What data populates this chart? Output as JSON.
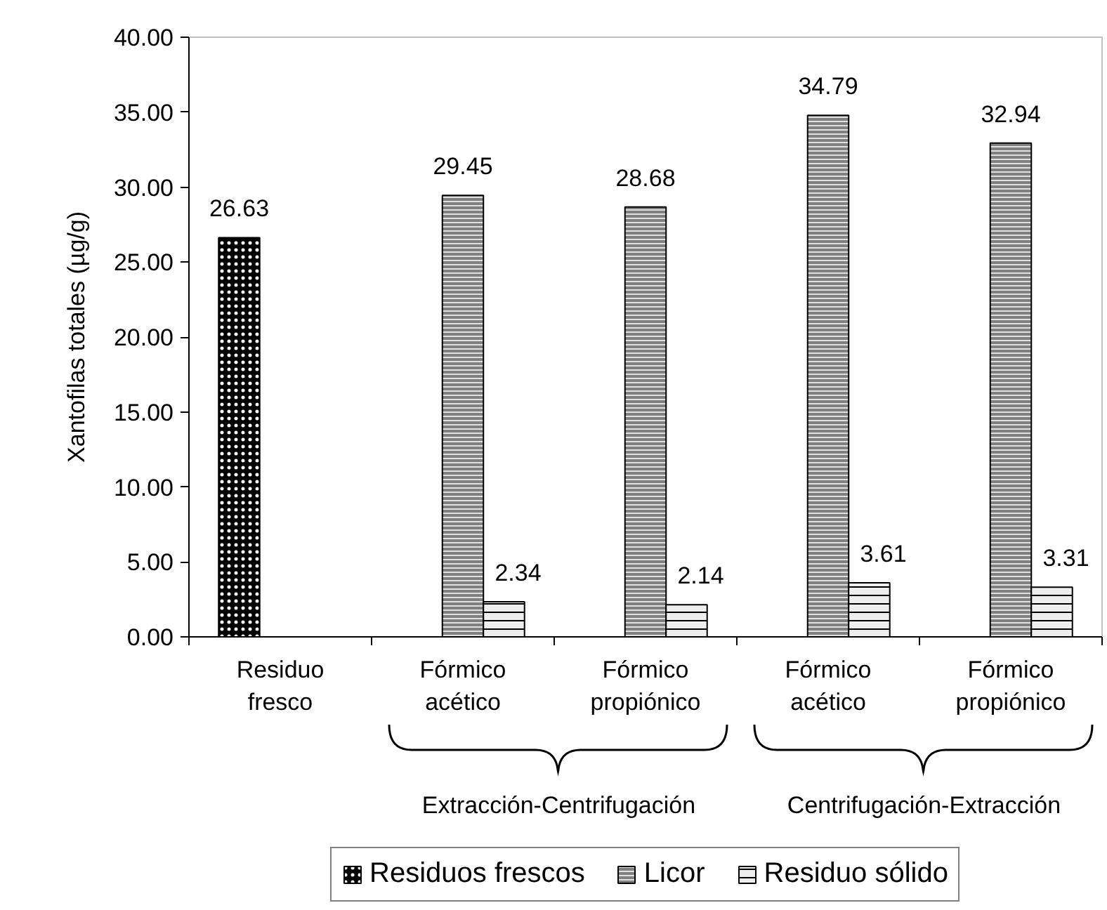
{
  "chart_data": {
    "type": "bar",
    "ylabel": "Xantofilas totales (µg/g)",
    "categories": [
      "Residuo fresco",
      "Fórmico acético",
      "Fórmico propiónico",
      "Fórmico acético",
      "Fórmico propiónico"
    ],
    "series": [
      {
        "name": "Residuos frescos",
        "color": "#000000",
        "values": [
          26.63,
          null,
          null,
          null,
          null
        ]
      },
      {
        "name": "Licor",
        "color": "#808080",
        "values": [
          null,
          29.45,
          28.68,
          34.79,
          32.94
        ]
      },
      {
        "name": "Residuo sólido",
        "color": "#eeeeee",
        "values": [
          null,
          2.34,
          2.14,
          3.61,
          3.31
        ]
      }
    ],
    "ylim": [
      0,
      40
    ],
    "yticks": [
      {
        "value": 0,
        "label": "0.00"
      },
      {
        "value": 5,
        "label": "5.00"
      },
      {
        "value": 10,
        "label": "10.00"
      },
      {
        "value": 15,
        "label": "15.00"
      },
      {
        "value": 20,
        "label": "20.00"
      },
      {
        "value": 25,
        "label": "25.00"
      },
      {
        "value": 30,
        "label": "30.00"
      },
      {
        "value": 35,
        "label": "35.00"
      },
      {
        "value": 40,
        "label": "40.00"
      }
    ],
    "data_labels": true,
    "legend": "bottom",
    "annotations": [
      "Extracción-Centrifugación",
      "Centrifugación-Extracción"
    ]
  }
}
